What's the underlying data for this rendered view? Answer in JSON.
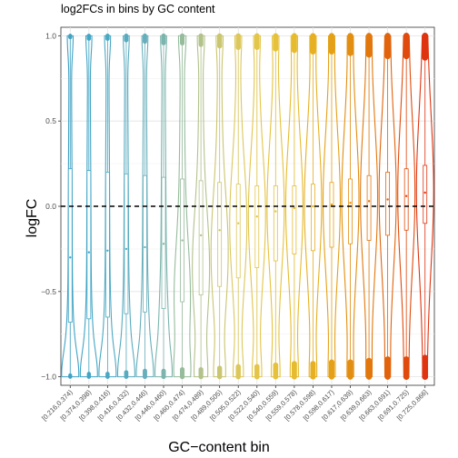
{
  "chart_data": {
    "type": "violin",
    "title": "log2FCs in bins by GC content",
    "xlabel": "GC−content bin",
    "ylabel": "logFC",
    "ylim": [
      -1.05,
      1.05
    ],
    "yticks": [
      1.0,
      0.5,
      0.0,
      -0.5,
      -1.0
    ],
    "ytick_labels": [
      "1.0",
      "0.5",
      "0.0",
      "−0.5",
      "−1.0"
    ],
    "reference_line": {
      "y": 0,
      "style": "dashed"
    },
    "grid": true,
    "legend": "none",
    "categories": [
      "[0.216,0.374)",
      "[0.374,0.398)",
      "[0.398,0.416)",
      "[0.416,0.432)",
      "[0.432,0.446)",
      "[0.446,0.460)",
      "[0.460,0.474)",
      "[0.474,0.489)",
      "[0.489,0.505)",
      "[0.505,0.522)",
      "[0.522,0.540)",
      "[0.540,0.559)",
      "[0.559,0.578)",
      "[0.578,0.598)",
      "[0.598,0.617)",
      "[0.617,0.639)",
      "[0.639,0.663)",
      "[0.663,0.691)",
      "[0.691,0.725)",
      "[0.725,0.866]"
    ],
    "colors": [
      "#3ea2c4",
      "#42a5c5",
      "#4aa8c3",
      "#58abbf",
      "#66aebb",
      "#7cb5ad",
      "#96bc9c",
      "#b2c28a",
      "#cac56f",
      "#dcc75b",
      "#e3c54a",
      "#e6c23c",
      "#e6bb2e",
      "#e6b022",
      "#e4a118",
      "#e28e10",
      "#e2780d",
      "#e1630c",
      "#e04a0c",
      "#df3410"
    ],
    "medians": [
      -0.3,
      -0.27,
      -0.26,
      -0.25,
      -0.24,
      -0.22,
      -0.2,
      -0.17,
      -0.14,
      -0.1,
      -0.06,
      -0.03,
      -0.01,
      0.0,
      0.01,
      0.02,
      0.03,
      0.04,
      0.06,
      0.08
    ],
    "q1": [
      -0.68,
      -0.66,
      -0.65,
      -0.63,
      -0.62,
      -0.6,
      -0.56,
      -0.52,
      -0.47,
      -0.42,
      -0.36,
      -0.32,
      -0.28,
      -0.26,
      -0.24,
      -0.22,
      -0.2,
      -0.17,
      -0.14,
      -0.1
    ],
    "q3": [
      0.22,
      0.21,
      0.2,
      0.19,
      0.18,
      0.17,
      0.16,
      0.15,
      0.14,
      0.13,
      0.12,
      0.12,
      0.12,
      0.13,
      0.14,
      0.16,
      0.18,
      0.2,
      0.22,
      0.24
    ],
    "density_mode": [
      -1.0,
      -1.0,
      -1.0,
      -1.0,
      -1.0,
      -0.95,
      -0.6,
      -0.4,
      -0.3,
      -0.1,
      -0.05,
      0.0,
      0.0,
      0.02,
      0.03,
      0.05,
      0.06,
      0.08,
      0.08,
      0.1
    ]
  }
}
